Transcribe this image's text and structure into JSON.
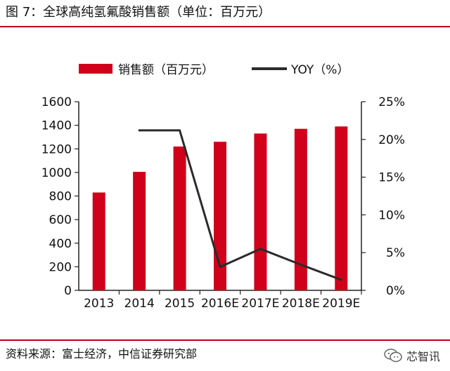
{
  "figure": {
    "title": "图 7：全球高纯氢氟酸销售额（单位：百万元）",
    "source": "资料来源：富士经济，中信证券研究部",
    "brand": "芯智讯"
  },
  "colors": {
    "accent_red": "#c0001a",
    "bar": "#d0021b",
    "line": "#2b2b2b",
    "axis": "#222222"
  },
  "chart_data": {
    "type": "bar",
    "title": "全球高纯氢氟酸销售额（单位：百万元）",
    "categories": [
      "2013",
      "2014",
      "2015",
      "2016E",
      "2017E",
      "2018E",
      "2019E"
    ],
    "series": [
      {
        "name": "销售额（百万元）",
        "type": "bar",
        "axis": "left",
        "values": [
          830,
          1005,
          1220,
          1260,
          1330,
          1370,
          1390
        ]
      },
      {
        "name": "YOY（%）",
        "type": "line",
        "axis": "right",
        "values": [
          null,
          21.2,
          21.2,
          3.1,
          5.5,
          3.4,
          1.4
        ]
      }
    ],
    "y_left": {
      "min": 0,
      "max": 1600,
      "ticks": [
        "0",
        "200",
        "400",
        "600",
        "800",
        "1000",
        "1200",
        "1400",
        "1600"
      ]
    },
    "y_right": {
      "min": 0,
      "max": 25,
      "ticks": [
        "0%",
        "5%",
        "10%",
        "15%",
        "20%",
        "25%"
      ]
    },
    "grid": false,
    "legend_position": "top"
  }
}
